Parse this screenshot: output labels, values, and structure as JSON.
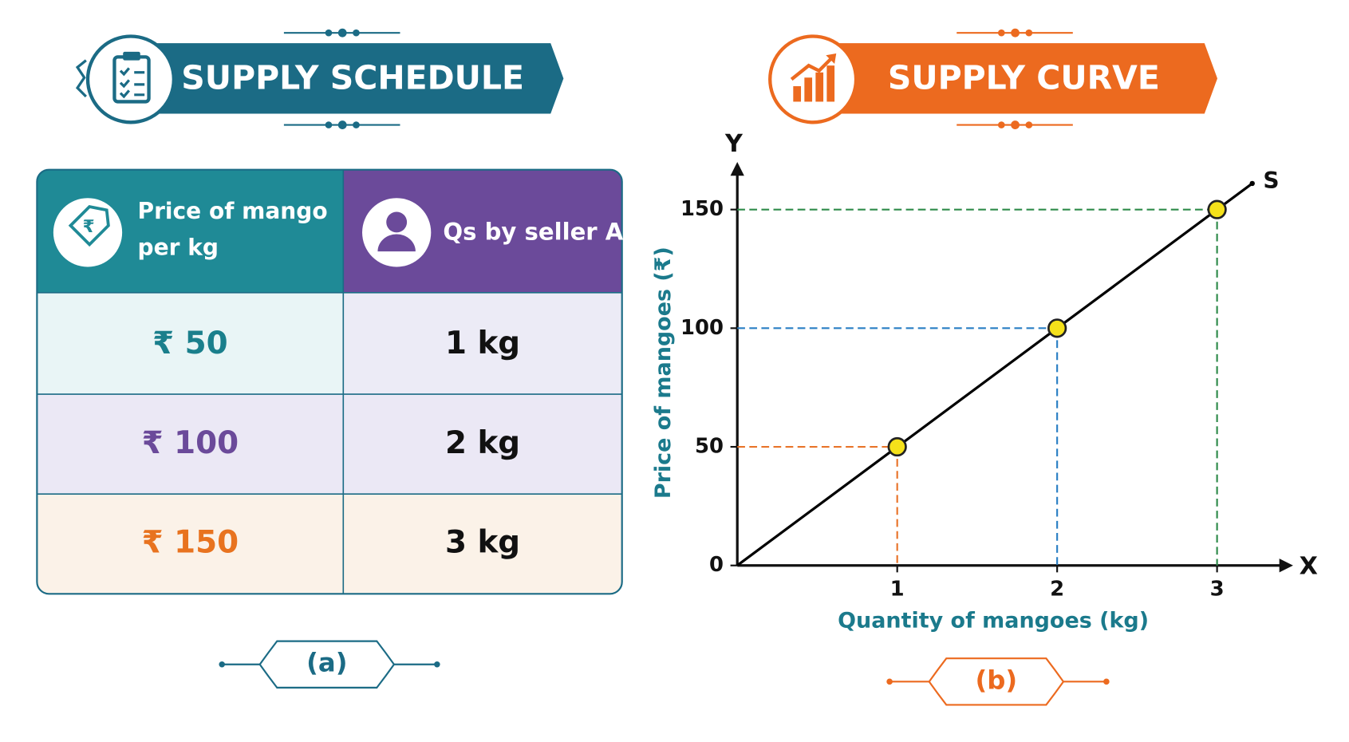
{
  "schedule": {
    "title": "SUPPLY SCHEDULE",
    "table": {
      "columns": [
        "Price of mango per kg",
        "Qs by seller A"
      ],
      "rows": [
        [
          "₹ 50",
          "1 kg"
        ],
        [
          "₹ 100",
          "2 kg"
        ],
        [
          "₹ 150",
          "3 kg"
        ]
      ]
    },
    "caption": "(a)"
  },
  "chart_data": {
    "type": "line",
    "title": "SUPPLY CURVE",
    "caption": "(b)",
    "x_axis_label": "Quantity of mangoes (kg)",
    "y_axis_label": "Price of mangoes (₹)",
    "x_axis_name": "X",
    "y_axis_name": "Y",
    "x": [
      1,
      2,
      3
    ],
    "series": [
      {
        "name": "S",
        "color": "#000000",
        "values": [
          50,
          100,
          150
        ]
      }
    ],
    "guide_colors": [
      "#e8742a",
      "#2a7fc4",
      "#2e8b4a"
    ],
    "marker_color": "#f5e11a",
    "xlim": [
      0,
      3.4
    ],
    "ylim": [
      0,
      165
    ],
    "xticks": [
      1,
      2,
      3
    ],
    "yticks": [
      0,
      50,
      100,
      150
    ]
  }
}
